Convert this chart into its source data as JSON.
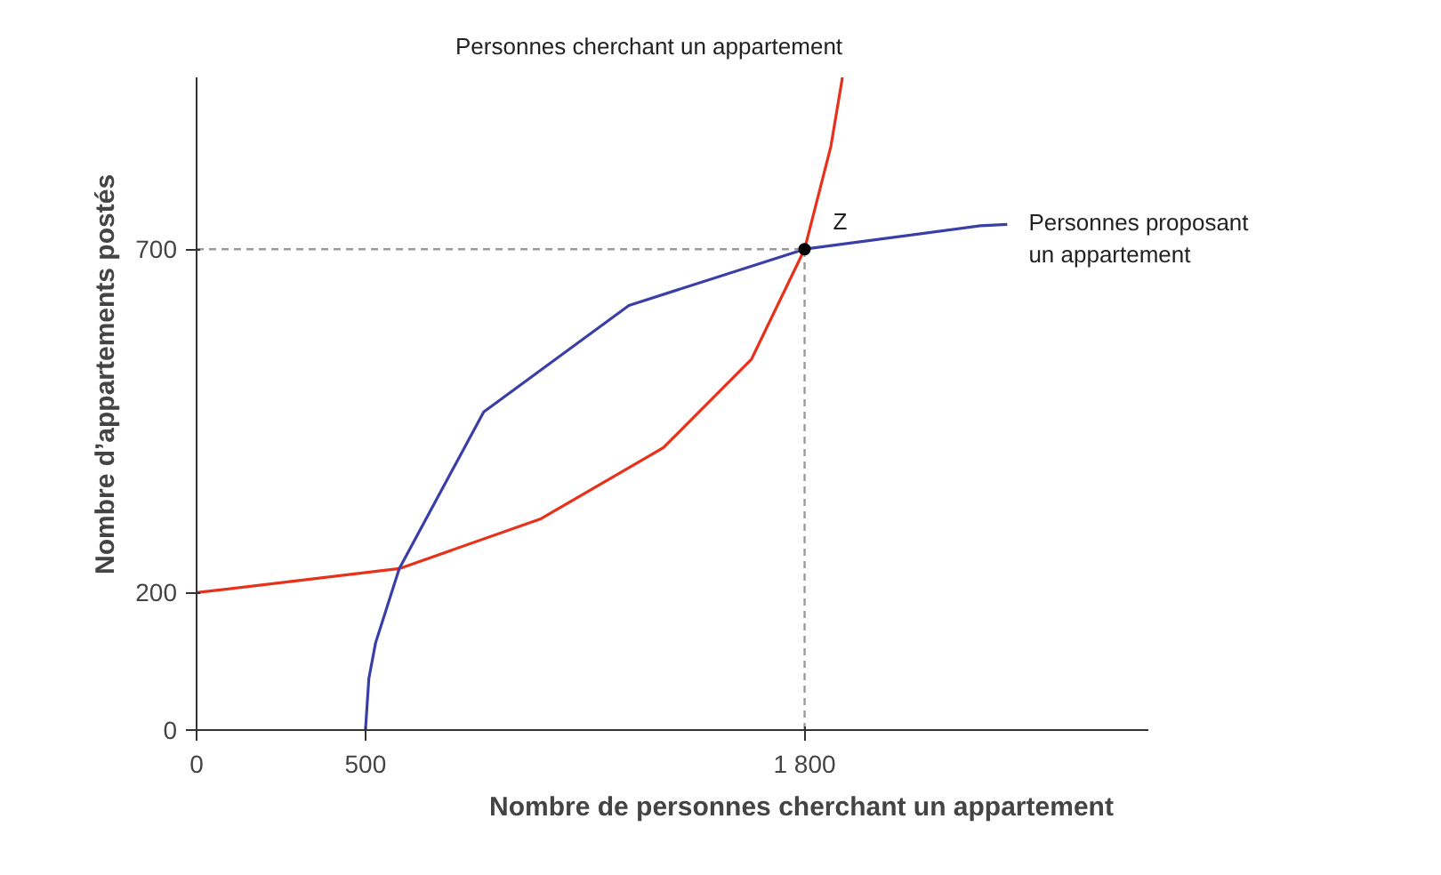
{
  "chart_data": {
    "type": "line",
    "xlabel": "Nombre de personnes cherchant un appartement",
    "ylabel": "Nombre d’appartements postés",
    "xlim": [
      0,
      2820
    ],
    "ylim": [
      0,
      950
    ],
    "xticks": [
      0,
      500,
      {
        "value": 1800,
        "label": "1 800"
      }
    ],
    "yticks": [
      0,
      200,
      700
    ],
    "grid": false,
    "marker": "none",
    "series": [
      {
        "name": "Personnes cherchant un appartement",
        "color": "#e8311a",
        "x": [
          0,
          600,
          1017,
          1382,
          1643,
          1800,
          1878,
          1912
        ],
        "values": [
          200,
          235,
          307,
          411,
          540,
          700,
          850,
          950
        ]
      },
      {
        "name": "Personnes proposant\nun appartement",
        "color": "#3a3fa8",
        "x": [
          500,
          510,
          530,
          600,
          850,
          1280,
          1800,
          2320,
          2400
        ],
        "values": [
          0,
          75,
          127,
          235,
          463,
          618,
          700,
          734,
          736
        ]
      },
      {
        "type": "line",
        "color": "#9a9a9a",
        "line_style": "dashed",
        "x": [
          0,
          1800
        ],
        "values": [
          700,
          700
        ]
      },
      {
        "type": "line",
        "color": "#9a9a9a",
        "line_style": "dashed",
        "x": [
          1800,
          1800
        ],
        "values": [
          0,
          700
        ]
      },
      {
        "type": "scatter",
        "color": "#000000",
        "marker": "circle",
        "x": [
          1800
        ],
        "values": [
          700
        ]
      }
    ],
    "annotations": [
      {
        "text": "Z",
        "x": 1800,
        "y": 700
      }
    ]
  }
}
